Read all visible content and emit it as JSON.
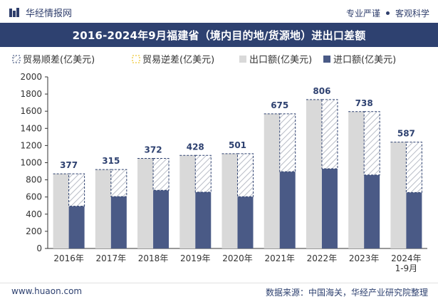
{
  "header": {
    "logo_text": "华经情报网",
    "slogan_left": "专业严谨",
    "slogan_right": "客观科学"
  },
  "footer": {
    "website": "www.huaon.com",
    "source": "数据来源：中国海关，华经产业研究院整理"
  },
  "chart_data": {
    "type": "bar",
    "title": "2016-2024年9月福建省（境内目的地/货源地）进出口差额",
    "categories": [
      "2016年",
      "2017年",
      "2018年",
      "2019年",
      "2020年",
      "2021年",
      "2022年",
      "2023年",
      "2024年\n1-9月"
    ],
    "category_lines": [
      [
        "2016年"
      ],
      [
        "2017年"
      ],
      [
        "2018年"
      ],
      [
        "2019年"
      ],
      [
        "2020年"
      ],
      [
        "2021年"
      ],
      [
        "2022年"
      ],
      [
        "2023年"
      ],
      [
        "2024年",
        "1-9月"
      ]
    ],
    "series": [
      {
        "name": "贸易顺差(亿美元)",
        "values": [
          377,
          315,
          372,
          428,
          501,
          675,
          806,
          738,
          587
        ]
      },
      {
        "name": "贸易逆差(亿美元)",
        "values": [
          0,
          0,
          0,
          0,
          0,
          0,
          0,
          0,
          0
        ]
      },
      {
        "name": "出口额(亿美元)",
        "values": [
          870,
          920,
          1050,
          1085,
          1105,
          1570,
          1735,
          1595,
          1240
        ]
      },
      {
        "name": "进口额(亿美元)",
        "values": [
          493,
          605,
          678,
          657,
          604,
          895,
          929,
          857,
          653
        ]
      }
    ],
    "data_labels": [
      "377",
      "315",
      "372",
      "428",
      "501",
      "675",
      "806",
      "738",
      "587"
    ],
    "xlabel": "",
    "ylabel": "",
    "ylim": [
      0,
      2000
    ],
    "yticks": [
      0,
      200,
      400,
      600,
      800,
      1000,
      1200,
      1400,
      1600,
      1800,
      2000
    ],
    "grid": false,
    "legend": "top-left",
    "colors": {
      "export": "#d9d9d9",
      "import": "#4a5a86",
      "surplus_border": "#2e4170",
      "surplus_hatch": "#b8bcc6",
      "deficit_border": "#e8b800",
      "title_bar": "#2e4170"
    }
  }
}
